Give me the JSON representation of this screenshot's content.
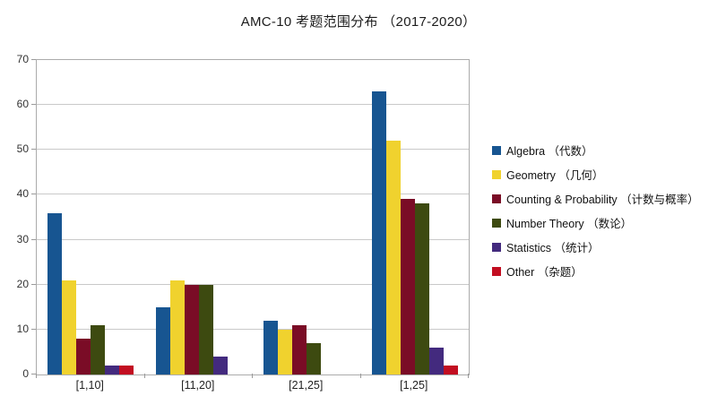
{
  "chart_data": {
    "type": "bar",
    "title": "AMC-10 考题范围分布 （2017-2020）",
    "categories": [
      "[1,10]",
      "[11,20]",
      "[21,25]",
      "[1,25]"
    ],
    "series": [
      {
        "name": "Algebra （代数）",
        "color": "#175591",
        "values": [
          36,
          15,
          12,
          63
        ]
      },
      {
        "name": "Geometry （几何）",
        "color": "#F0D22E",
        "values": [
          21,
          21,
          10,
          52
        ]
      },
      {
        "name": "Counting & Probability （计数与概率）",
        "color": "#7A0C26",
        "values": [
          8,
          20,
          11,
          39
        ]
      },
      {
        "name": "Number Theory （数论）",
        "color": "#3D4A10",
        "values": [
          11,
          20,
          7,
          38
        ]
      },
      {
        "name": "Statistics （统计）",
        "color": "#432A7E",
        "values": [
          2,
          4,
          0,
          6
        ]
      },
      {
        "name": "Other （杂题）",
        "color": "#C20E21",
        "values": [
          2,
          0,
          0,
          2
        ]
      }
    ],
    "xlabel": "",
    "ylabel": "",
    "ylim": [
      0,
      70
    ],
    "ytick_step": 10,
    "grid": true,
    "legend_position": "right"
  }
}
